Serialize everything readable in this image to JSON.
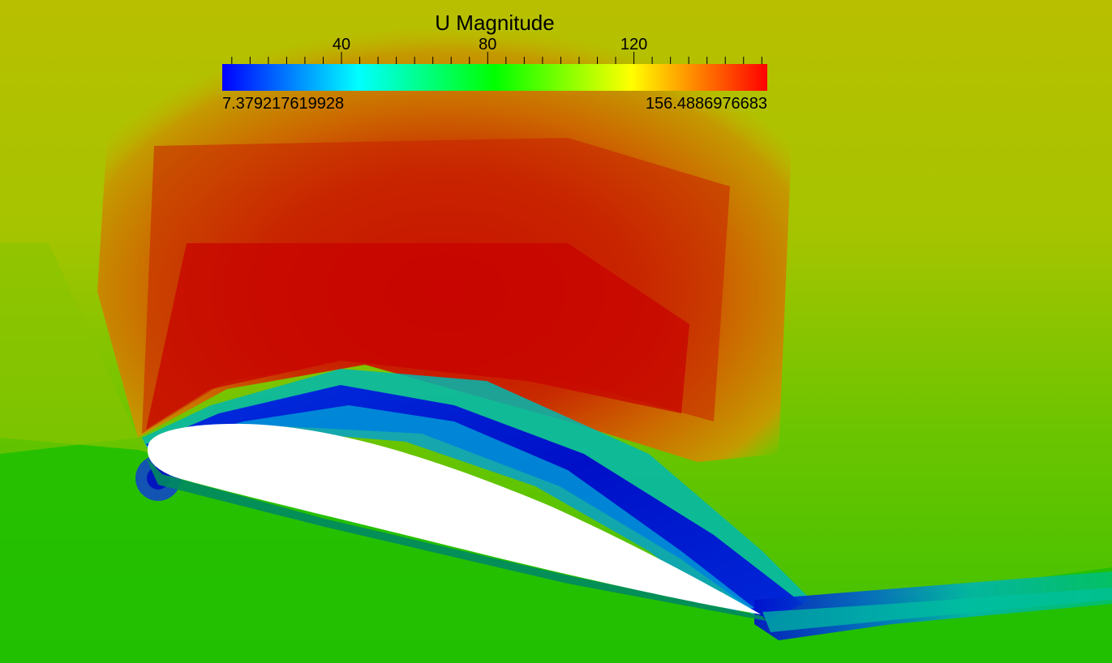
{
  "colorbar": {
    "title": "U Magnitude",
    "min_label": "7.379217619928",
    "max_label": "156.4886976683",
    "min": 7.379217619928,
    "max": 156.4886976683,
    "tick_labels": [
      "40",
      "80",
      "120"
    ],
    "tick_values": [
      40,
      80,
      120
    ],
    "colormap": [
      "#0000ff",
      "#00ffff",
      "#00ff00",
      "#ffff00",
      "#ff0000"
    ]
  },
  "field": {
    "freestream_color": "#7ec800",
    "high_speed_color": "#cc1100",
    "low_speed_color": "#0033cc",
    "airfoil_color": "#ffffff"
  }
}
